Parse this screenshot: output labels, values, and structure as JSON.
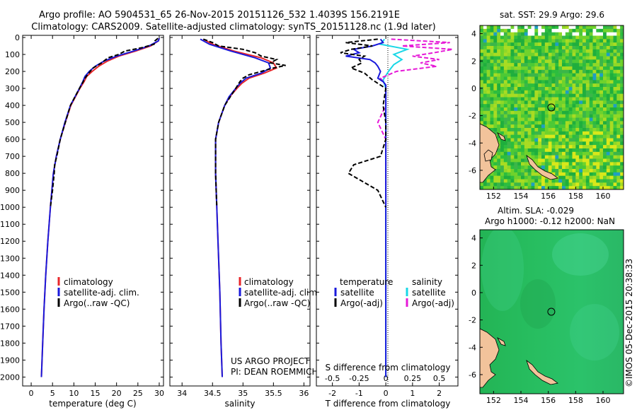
{
  "header": {
    "title_line1": "Argo profile: AO 5904531_65 26-Nov-2015 20151126_532 1.4039S 156.2191E",
    "title_line2": "Climatology: CARS2009. Satellite-adjusted climatology: synTS_20151128.nc (1.9d later)"
  },
  "colors": {
    "climatology": "#e8262a",
    "satellite": "#1a1adc",
    "argo": "#000000",
    "sat_salinity": "#19d7e6",
    "argo_salinity": "#e619d7",
    "land": "#f2c39b"
  },
  "chart_data": [
    {
      "id": "temperature",
      "type": "line",
      "xlabel": "temperature (deg C)",
      "xlim": [
        -2,
        31
      ],
      "xticks": [
        0,
        5,
        10,
        15,
        20,
        25,
        30
      ],
      "ylim": [
        0,
        2040
      ],
      "yticks": [
        0,
        100,
        200,
        300,
        400,
        500,
        600,
        700,
        800,
        900,
        1000,
        1100,
        1200,
        1300,
        1400,
        1500,
        1600,
        1700,
        1800,
        1900,
        2000
      ],
      "legend": [
        "climatology",
        "satellite-adj. clim.",
        "Argo(..raw -QC)"
      ],
      "series": [
        {
          "name": "climatology",
          "depth": [
            5,
            20,
            50,
            80,
            110,
            140,
            170,
            200,
            230,
            260,
            300,
            400,
            500,
            600,
            700,
            800,
            1000,
            1200,
            1400,
            1600,
            1800,
            2000
          ],
          "values": [
            30.0,
            29.8,
            28.0,
            24.5,
            20.5,
            17.8,
            15.8,
            14.3,
            13.0,
            12.4,
            11.4,
            9.3,
            8.0,
            6.8,
            5.9,
            5.2,
            4.5,
            3.9,
            3.4,
            3.0,
            2.7,
            2.4
          ]
        },
        {
          "name": "satellite-adj. clim.",
          "depth": [
            5,
            20,
            50,
            80,
            110,
            140,
            170,
            200,
            230,
            260,
            300,
            400,
            500,
            600,
            700,
            800,
            1000,
            1200,
            1400,
            1600,
            1800,
            2000
          ],
          "values": [
            30.0,
            29.8,
            27.6,
            24.0,
            20.0,
            17.0,
            15.0,
            13.6,
            12.6,
            12.1,
            11.3,
            9.2,
            7.9,
            6.8,
            5.9,
            5.2,
            4.5,
            3.9,
            3.4,
            3.0,
            2.7,
            2.4
          ]
        },
        {
          "name": "Argo(..raw -QC)",
          "depth": [
            5,
            20,
            40,
            60,
            80,
            100,
            120,
            150,
            180,
            210,
            240,
            260,
            300,
            400,
            500,
            600,
            700,
            750,
            800,
            900,
            1000
          ],
          "values": [
            29.7,
            29.0,
            28.8,
            26.0,
            22.0,
            20.5,
            18.0,
            16.5,
            14.5,
            13.5,
            12.6,
            12.2,
            11.3,
            9.2,
            8.0,
            6.8,
            6.0,
            5.5,
            5.4,
            5.0,
            4.5
          ]
        }
      ]
    },
    {
      "id": "salinity",
      "type": "line",
      "xlabel": "salinity",
      "xlim": [
        33.8,
        36.1
      ],
      "xticks": [
        34,
        34.5,
        35,
        35.5,
        36
      ],
      "ylim": [
        0,
        2040
      ],
      "legend": [
        "climatology",
        "satellite-adj. clim.",
        "Argo(..raw -QC)"
      ],
      "annotation_line1": "US ARGO PROJECT",
      "annotation_line2": "PI: DEAN ROEMMICH",
      "series": [
        {
          "name": "climatology",
          "depth": [
            10,
            40,
            80,
            120,
            150,
            180,
            210,
            240,
            270,
            300,
            350,
            400,
            500,
            600,
            800,
            1000,
            1200,
            1500,
            1800,
            2000
          ],
          "values": [
            34.35,
            34.5,
            34.85,
            35.3,
            35.5,
            35.55,
            35.35,
            35.1,
            34.98,
            34.9,
            34.78,
            34.7,
            34.6,
            34.55,
            34.55,
            34.57,
            34.59,
            34.62,
            34.64,
            34.66
          ]
        },
        {
          "name": "satellite-adj. clim.",
          "depth": [
            10,
            40,
            80,
            120,
            150,
            180,
            210,
            240,
            270,
            300,
            350,
            400,
            500,
            600,
            800,
            1000,
            1200,
            1500,
            1800,
            2000
          ],
          "values": [
            34.3,
            34.45,
            34.8,
            35.2,
            35.42,
            35.45,
            35.3,
            35.05,
            34.95,
            34.88,
            34.77,
            34.7,
            34.6,
            34.55,
            34.55,
            34.57,
            34.59,
            34.62,
            34.64,
            34.66
          ]
        },
        {
          "name": "Argo(..raw -QC)",
          "depth": [
            10,
            30,
            50,
            70,
            90,
            110,
            130,
            150,
            165,
            180,
            200,
            220,
            240,
            260,
            300,
            400,
            500,
            600,
            800,
            1000
          ],
          "values": [
            34.35,
            34.5,
            34.6,
            35.0,
            35.2,
            35.3,
            35.55,
            35.45,
            35.7,
            35.5,
            35.3,
            35.1,
            35.0,
            34.95,
            34.88,
            34.7,
            34.6,
            34.55,
            34.55,
            34.57
          ]
        }
      ]
    },
    {
      "id": "difference",
      "type": "line",
      "xlabel": "T difference from climatology",
      "xlabel_top": "S difference from climatology",
      "xlim": [
        -2.6,
        2.7
      ],
      "xticks_T": [
        -2,
        -1,
        0,
        1,
        2
      ],
      "xticks_S": [
        "-0.5",
        "-0.25",
        "0",
        "0.25",
        "0.5"
      ],
      "ylim": [
        0,
        2040
      ],
      "legend": {
        "temperature_heading": "temperature",
        "salinity_heading": "salinity",
        "satellite": "satellite",
        "argo": "Argo(-adj)"
      },
      "series": [
        {
          "name": "temperature satellite",
          "depth": [
            10,
            30,
            50,
            70,
            90,
            110,
            130,
            150,
            170,
            200,
            240,
            260,
            280,
            300,
            400,
            500,
            600,
            800,
            1000,
            1500,
            2000
          ],
          "values": [
            -0.2,
            -0.1,
            -0.5,
            -1.2,
            -1.0,
            -1.5,
            -0.6,
            -0.4,
            -0.3,
            -0.2,
            -0.3,
            -0.1,
            0.0,
            0.0,
            0.0,
            0.0,
            0.0,
            0.0,
            0.0,
            0.0,
            0.0
          ]
        },
        {
          "name": "temperature Argo(-adj)",
          "depth": [
            10,
            30,
            50,
            70,
            90,
            110,
            130,
            150,
            180,
            210,
            250,
            280,
            300,
            400,
            500,
            600,
            700,
            750,
            800,
            900,
            1000
          ],
          "values": [
            -0.3,
            -1.5,
            -0.5,
            -1.3,
            -1.7,
            -0.8,
            -1.0,
            -0.9,
            -1.3,
            -0.8,
            -0.5,
            -0.2,
            0.0,
            -0.1,
            0.0,
            0.0,
            -0.2,
            -1.2,
            -1.4,
            -0.3,
            0.0
          ]
        },
        {
          "name": "salinity satellite",
          "depth": [
            10,
            40,
            70,
            100,
            130,
            160,
            200,
            250,
            300,
            400,
            600,
            1000,
            1500,
            2000
          ],
          "values": [
            -0.05,
            -0.2,
            0.8,
            0.3,
            0.6,
            0.3,
            0.1,
            -0.1,
            0.0,
            0.0,
            0.0,
            0.0,
            0.0,
            0.0
          ]
        },
        {
          "name": "salinity Argo(-adj)",
          "depth": [
            10,
            30,
            50,
            70,
            90,
            110,
            130,
            150,
            170,
            200,
            240,
            280,
            300,
            400,
            500,
            600,
            800,
            1000
          ],
          "values": [
            0.2,
            2.4,
            0.6,
            2.5,
            1.8,
            1.0,
            2.0,
            1.3,
            1.9,
            0.4,
            -0.2,
            0.0,
            0.0,
            0.0,
            -0.3,
            0.0,
            0.0,
            0.0
          ]
        }
      ]
    },
    {
      "id": "sst_map",
      "type": "heatmap",
      "title": "sat. SST: 29.9 Argo: 29.6",
      "xlim": [
        151,
        161.5
      ],
      "ylim": [
        -7.4,
        4.6
      ],
      "xticks": [
        152,
        154,
        156,
        158,
        160
      ],
      "yticks": [
        4,
        2,
        0,
        -2,
        -4,
        -6
      ],
      "argo_position": {
        "lon": 156.22,
        "lat": -1.4
      }
    },
    {
      "id": "sla_map",
      "type": "heatmap",
      "title_line1": "Altim. SLA: -0.029",
      "title_line2": "Argo h1000: -0.12 h2000: NaN",
      "xlim": [
        151,
        161.5
      ],
      "ylim": [
        -7.4,
        4.6
      ],
      "xticks": [
        152,
        154,
        156,
        158,
        160
      ],
      "yticks": [
        4,
        2,
        0,
        -2,
        -4,
        -6
      ],
      "argo_position": {
        "lon": 156.22,
        "lat": -1.4
      }
    }
  ],
  "footer": {
    "credit": "©IMOS 05-Dec-2015 20:38:33"
  }
}
